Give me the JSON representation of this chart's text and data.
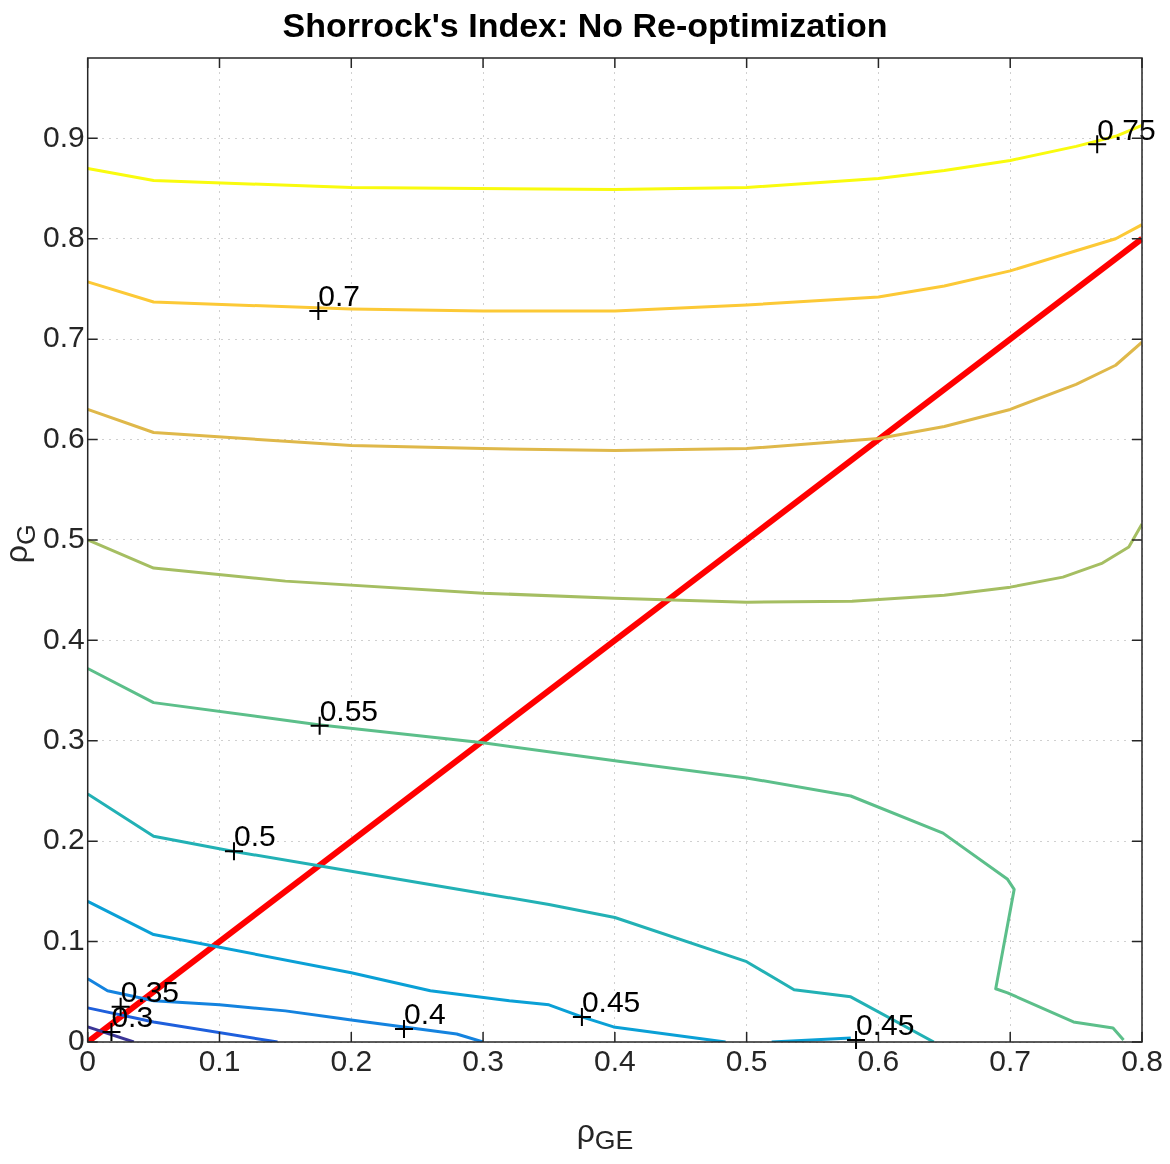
{
  "chart_data": {
    "type": "line",
    "title": "Shorrock's Index: No Re-optimization",
    "xlabel": "ρ$_{GE}$",
    "ylabel": "ρ$_{G}$",
    "xlim": [
      0,
      0.8
    ],
    "ylim": [
      0,
      0.98
    ],
    "xticks": [
      0,
      0.1,
      0.2,
      0.3,
      0.4,
      0.5,
      0.6,
      0.7,
      0.8
    ],
    "yticks": [
      0,
      0.1,
      0.2,
      0.3,
      0.4,
      0.5,
      0.6,
      0.7,
      0.8,
      0.9
    ],
    "grid": true,
    "legend": false,
    "marker": "none",
    "line_style": "solid",
    "series": [
      {
        "color": "#f9fb0e",
        "x": [
          0,
          0.05,
          0.2,
          0.4,
          0.5,
          0.6,
          0.65,
          0.7,
          0.75,
          0.78,
          0.8
        ],
        "values": [
          0.87,
          0.858,
          0.851,
          0.849,
          0.851,
          0.86,
          0.868,
          0.878,
          0.892,
          0.902,
          0.913
        ]
      },
      {
        "color": "#fcc936",
        "x": [
          0,
          0.05,
          0.2,
          0.3,
          0.4,
          0.5,
          0.6,
          0.65,
          0.7,
          0.75,
          0.78,
          0.8
        ],
        "values": [
          0.757,
          0.737,
          0.73,
          0.728,
          0.728,
          0.734,
          0.742,
          0.753,
          0.768,
          0.788,
          0.8,
          0.814
        ]
      },
      {
        "color": "#dfb84a",
        "x": [
          0,
          0.05,
          0.2,
          0.3,
          0.4,
          0.5,
          0.6,
          0.65,
          0.7,
          0.75,
          0.78,
          0.8
        ],
        "values": [
          0.63,
          0.607,
          0.594,
          0.591,
          0.589,
          0.591,
          0.601,
          0.613,
          0.63,
          0.655,
          0.674,
          0.697
        ]
      },
      {
        "color": "#a5be62",
        "x": [
          0,
          0.05,
          0.15,
          0.3,
          0.4,
          0.5,
          0.58,
          0.65,
          0.7,
          0.74,
          0.77,
          0.79,
          0.8
        ],
        "values": [
          0.5,
          0.472,
          0.459,
          0.447,
          0.442,
          0.438,
          0.439,
          0.445,
          0.453,
          0.463,
          0.477,
          0.493,
          0.516
        ]
      },
      {
        "color": "#5cbf8a",
        "x": [
          0,
          0.05,
          0.175,
          0.3,
          0.4,
          0.5,
          0.579,
          0.649,
          0.698,
          0.703,
          0.689,
          0.698,
          0.748,
          0.778,
          0.786
        ],
        "values": [
          0.372,
          0.338,
          0.316,
          0.298,
          0.28,
          0.263,
          0.245,
          0.208,
          0.162,
          0.152,
          0.053,
          0.049,
          0.02,
          0.014,
          0.002
        ]
      },
      {
        "color": "#22b1b5",
        "x": [
          0,
          0.05,
          0.11,
          0.2,
          0.3,
          0.35,
          0.4,
          0.5,
          0.536,
          0.579,
          0.642
        ],
        "values": [
          0.247,
          0.205,
          0.19,
          0.17,
          0.148,
          0.137,
          0.124,
          0.08,
          0.052,
          0.045,
          0
        ]
      },
      {
        "color": "#0aa0d6",
        "x": [
          0,
          0.05,
          0.2,
          0.26,
          0.32,
          0.35,
          0.375,
          0.399,
          0.484
        ],
        "values": [
          0.14,
          0.107,
          0.069,
          0.051,
          0.041,
          0.037,
          0.025,
          0.015,
          0
        ]
      },
      {
        "color": "#0aa0d6",
        "x": [
          0.519,
          0.579
        ],
        "values": [
          0,
          0.004
        ]
      },
      {
        "color": "#1483df",
        "x": [
          0,
          0.015,
          0.05,
          0.1,
          0.15,
          0.2,
          0.28,
          0.3
        ],
        "values": [
          0.063,
          0.051,
          0.041,
          0.037,
          0.031,
          0.022,
          0.008,
          0
        ]
      },
      {
        "color": "#1e5fdc",
        "x": [
          0,
          0.05,
          0.144
        ],
        "values": [
          0.034,
          0.02,
          0
        ]
      },
      {
        "color": "#3b3596",
        "x": [
          0,
          0.035
        ],
        "values": [
          0.015,
          0
        ]
      },
      {
        "color": "#ff0000",
        "x": [
          0,
          0.8
        ],
        "values": [
          0,
          0.8
        ]
      }
    ],
    "annotations": [
      {
        "text": "0.75",
        "x": 0.766,
        "y": 0.894
      },
      {
        "text": "0.7",
        "x": 0.175,
        "y": 0.728
      },
      {
        "text": "0.55",
        "x": 0.176,
        "y": 0.315
      },
      {
        "text": "0.5",
        "x": 0.111,
        "y": 0.19
      },
      {
        "text": "0.45",
        "x": 0.375,
        "y": 0.025
      },
      {
        "text": "0.45",
        "x": 0.583,
        "y": 0.002
      },
      {
        "text": "0.4",
        "x": 0.24,
        "y": 0.013
      },
      {
        "text": "0.35",
        "x": 0.025,
        "y": 0.035
      },
      {
        "text": "0.3",
        "x": 0.018,
        "y": 0.01
      }
    ]
  }
}
